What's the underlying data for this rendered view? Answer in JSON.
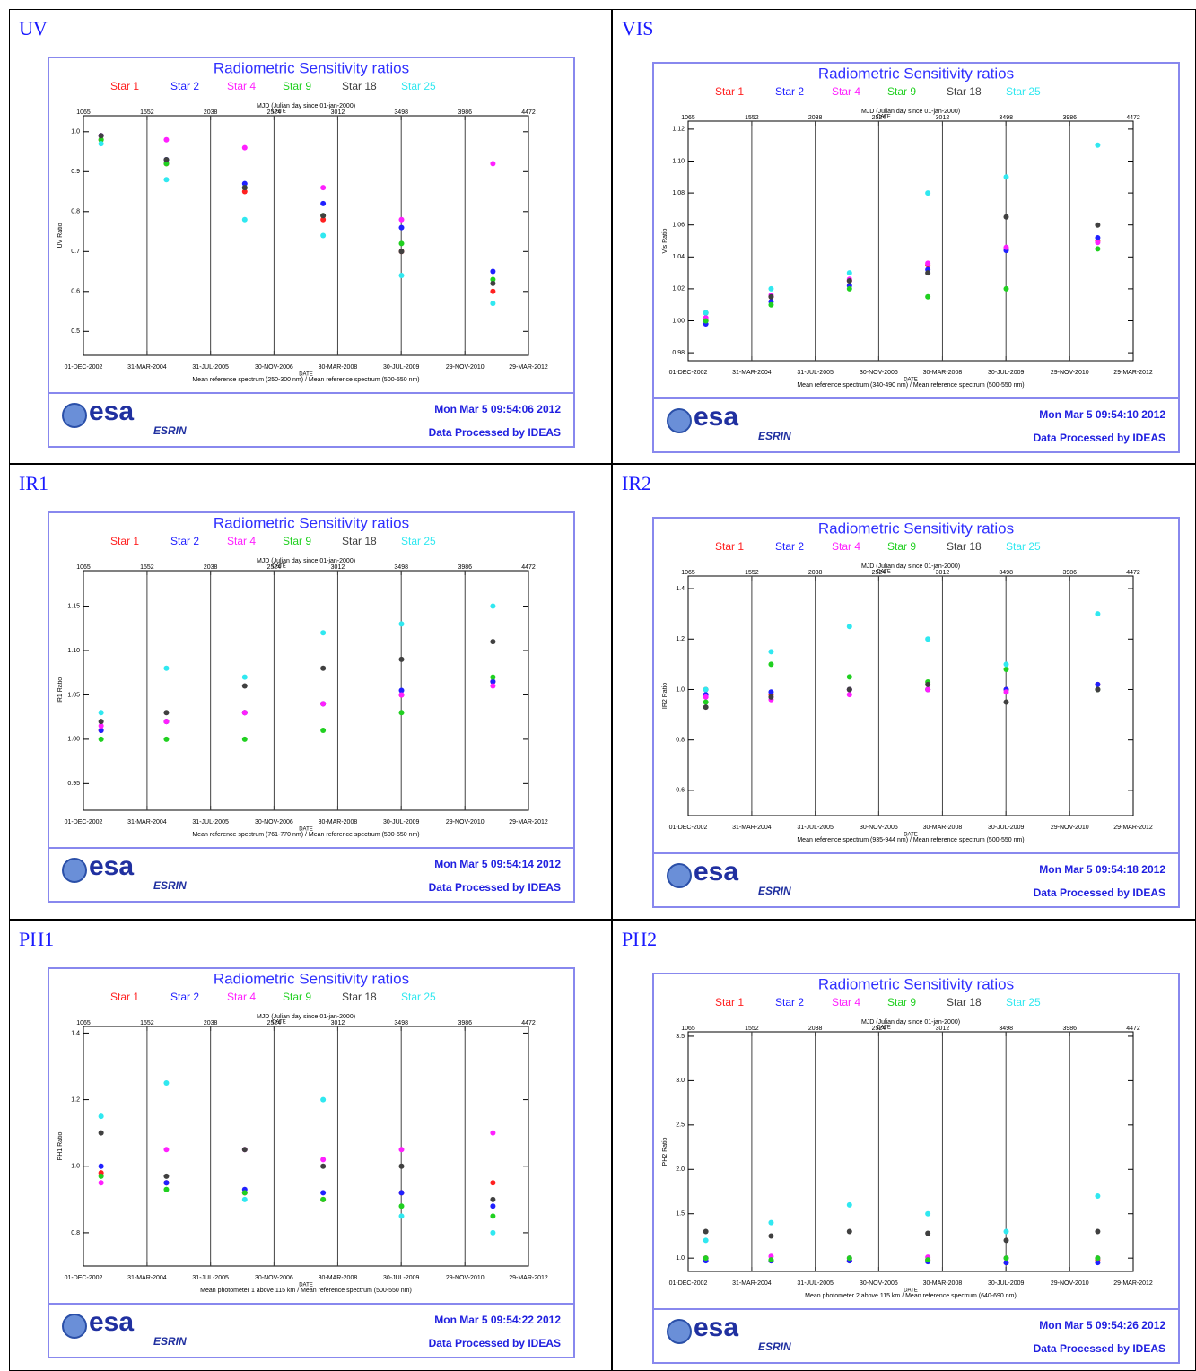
{
  "chart_data": [
    {
      "panel": "UV",
      "type": "scatter",
      "title": "Radiometric Sensitivity ratios",
      "top_axis_label": "MJD (Julian day since 01-jan-2000)",
      "date_label": "DATE",
      "xlabel": "Mean reference spectrum (250-300 nm) / Mean reference spectrum (500-550 nm)",
      "ylabel": "UV Ratio",
      "timestamp": "Mon Mar  5 09:54:06 2012",
      "credit": "Data Processed by IDEAS",
      "logo": "esa",
      "logo_sub": "ESRIN",
      "xlim": [
        1065,
        4472
      ],
      "xticks": [
        {
          "value": 1065,
          "label": "01-DEC-2002"
        },
        {
          "value": 1552,
          "label": "31-MAR-2004"
        },
        {
          "value": 2038,
          "label": "31-JUL-2005"
        },
        {
          "value": 2524,
          "label": "30-NOV-2006"
        },
        {
          "value": 3012,
          "label": "30-MAR-2008"
        },
        {
          "value": 3498,
          "label": "30-JUL-2009"
        },
        {
          "value": 3986,
          "label": "29-NOV-2010"
        },
        {
          "value": 4472,
          "label": "29-MAR-2012"
        }
      ],
      "x2ticks": [
        1065,
        1552,
        2038,
        2524,
        3012,
        3498,
        3986,
        4472
      ],
      "grid": true,
      "ylim": [
        0.44,
        1.04
      ],
      "yticks": [
        0.5,
        0.6,
        0.7,
        0.8,
        0.9,
        {
          "value": 1,
          "label": "1.0"
        }
      ],
      "x": [
        1200,
        1700,
        2300,
        2900,
        3500,
        4200
      ],
      "series": [
        {
          "name": "Star 1",
          "color": "#ff2020",
          "values": [
            0.98,
            0.92,
            0.85,
            0.78,
            0.7,
            0.6
          ]
        },
        {
          "name": "Star 2",
          "color": "#2020ff",
          "values": [
            0.99,
            0.93,
            0.87,
            0.82,
            0.76,
            0.65
          ]
        },
        {
          "name": "Star 4",
          "color": "#ff20ff",
          "values": [
            0.99,
            0.98,
            0.96,
            0.86,
            0.78,
            0.92
          ]
        },
        {
          "name": "Star 9",
          "color": "#20d020",
          "values": [
            0.98,
            0.92,
            0.86,
            0.79,
            0.72,
            0.63
          ]
        },
        {
          "name": "Star 18",
          "color": "#404040",
          "values": [
            0.99,
            0.93,
            0.86,
            0.79,
            0.7,
            0.62
          ]
        },
        {
          "name": "Star 25",
          "color": "#30e8f0",
          "values": [
            0.97,
            0.88,
            0.78,
            0.74,
            0.64,
            0.57
          ]
        }
      ]
    },
    {
      "panel": "VIS",
      "type": "scatter",
      "title": "Radiometric Sensitivity ratios",
      "top_axis_label": "MJD (Julian day since 01-jan-2000)",
      "date_label": "DATE",
      "xlabel": "Mean reference spectrum (340-490 nm) / Mean reference spectrum (500-550 nm)",
      "ylabel": "Vis Ratio",
      "timestamp": "Mon Mar  5 09:54:10 2012",
      "credit": "Data Processed by IDEAS",
      "logo": "esa",
      "logo_sub": "ESRIN",
      "xlim": [
        1065,
        4472
      ],
      "xticks": [
        {
          "value": 1065,
          "label": "01-DEC-2002"
        },
        {
          "value": 1552,
          "label": "31-MAR-2004"
        },
        {
          "value": 2038,
          "label": "31-JUL-2005"
        },
        {
          "value": 2524,
          "label": "30-NOV-2006"
        },
        {
          "value": 3012,
          "label": "30-MAR-2008"
        },
        {
          "value": 3498,
          "label": "30-JUL-2009"
        },
        {
          "value": 3986,
          "label": "29-NOV-2010"
        },
        {
          "value": 4472,
          "label": "29-MAR-2012"
        }
      ],
      "x2ticks": [
        1065,
        1552,
        2038,
        2524,
        3012,
        3498,
        3986,
        4472
      ],
      "grid": true,
      "ylim": [
        0.975,
        1.125
      ],
      "yticks": [
        0.98,
        {
          "value": 1,
          "label": "1.00"
        },
        1.02,
        1.04,
        1.06,
        1.08,
        {
          "value": 1.1,
          "label": "1.10"
        },
        1.12
      ],
      "x": [
        1200,
        1700,
        2300,
        2900,
        3500,
        4200
      ],
      "series": [
        {
          "name": "Star 1",
          "color": "#ff2020",
          "values": [
            1.0,
            1.015,
            1.025,
            1.035,
            1.045,
            1.05
          ]
        },
        {
          "name": "Star 2",
          "color": "#2020ff",
          "values": [
            0.998,
            1.012,
            1.022,
            1.032,
            1.044,
            1.052
          ]
        },
        {
          "name": "Star 4",
          "color": "#ff20ff",
          "values": [
            1.002,
            1.016,
            1.026,
            1.036,
            1.046,
            1.049
          ]
        },
        {
          "name": "Star 9",
          "color": "#20d020",
          "values": [
            1.0,
            1.01,
            1.02,
            1.015,
            1.02,
            1.045
          ]
        },
        {
          "name": "Star 18",
          "color": "#404040",
          "values": [
            1.005,
            1.015,
            1.025,
            1.03,
            1.065,
            1.06
          ]
        },
        {
          "name": "Star 25",
          "color": "#30e8f0",
          "values": [
            1.005,
            1.02,
            1.03,
            1.08,
            1.09,
            1.11
          ]
        }
      ]
    },
    {
      "panel": "IR1",
      "type": "scatter",
      "title": "Radiometric Sensitivity ratios",
      "top_axis_label": "MJD (Julian day since 01-jan-2000)",
      "date_label": "DATE",
      "xlabel": "Mean reference spectrum (761-770 nm) / Mean reference spectrum (500-550 nm)",
      "ylabel": "IR1 Ratio",
      "timestamp": "Mon Mar  5 09:54:14 2012",
      "credit": "Data Processed by IDEAS",
      "logo": "esa",
      "logo_sub": "ESRIN",
      "xlim": [
        1065,
        4472
      ],
      "xticks": [
        {
          "value": 1065,
          "label": "01-DEC-2002"
        },
        {
          "value": 1552,
          "label": "31-MAR-2004"
        },
        {
          "value": 2038,
          "label": "31-JUL-2005"
        },
        {
          "value": 2524,
          "label": "30-NOV-2006"
        },
        {
          "value": 3012,
          "label": "30-MAR-2008"
        },
        {
          "value": 3498,
          "label": "30-JUL-2009"
        },
        {
          "value": 3986,
          "label": "29-NOV-2010"
        },
        {
          "value": 4472,
          "label": "29-MAR-2012"
        }
      ],
      "x2ticks": [
        1065,
        1552,
        2038,
        2524,
        3012,
        3498,
        3986,
        4472
      ],
      "grid": true,
      "ylim": [
        0.92,
        1.19
      ],
      "yticks": [
        0.95,
        {
          "value": 1,
          "label": "1.00"
        },
        1.05,
        {
          "value": 1.1,
          "label": "1.10"
        },
        1.15
      ],
      "x": [
        1200,
        1700,
        2300,
        2900,
        3500,
        4200
      ],
      "series": [
        {
          "name": "Star 1",
          "color": "#ff2020",
          "values": [
            1.01,
            1.02,
            1.03,
            1.04,
            1.05,
            1.065
          ]
        },
        {
          "name": "Star 2",
          "color": "#2020ff",
          "values": [
            1.01,
            1.02,
            1.03,
            1.04,
            1.055,
            1.065
          ]
        },
        {
          "name": "Star 4",
          "color": "#ff20ff",
          "values": [
            1.015,
            1.02,
            1.03,
            1.04,
            1.05,
            1.06
          ]
        },
        {
          "name": "Star 9",
          "color": "#20d020",
          "values": [
            1.0,
            1.0,
            1.0,
            1.01,
            1.03,
            1.07
          ]
        },
        {
          "name": "Star 18",
          "color": "#404040",
          "values": [
            1.02,
            1.03,
            1.06,
            1.08,
            1.09,
            1.11
          ]
        },
        {
          "name": "Star 25",
          "color": "#30e8f0",
          "values": [
            1.03,
            1.08,
            1.07,
            1.12,
            1.13,
            1.15
          ]
        }
      ]
    },
    {
      "panel": "IR2",
      "type": "scatter",
      "title": "Radiometric Sensitivity ratios",
      "top_axis_label": "MJD (Julian day since 01-jan-2000)",
      "date_label": "DATE",
      "xlabel": "Mean reference spectrum (935-944 nm) / Mean reference spectrum (500-550 nm)",
      "ylabel": "IR2 Ratio",
      "timestamp": "Mon Mar  5 09:54:18 2012",
      "credit": "Data Processed by IDEAS",
      "logo": "esa",
      "logo_sub": "ESRIN",
      "xlim": [
        1065,
        4472
      ],
      "xticks": [
        {
          "value": 1065,
          "label": "01-DEC-2002"
        },
        {
          "value": 1552,
          "label": "31-MAR-2004"
        },
        {
          "value": 2038,
          "label": "31-JUL-2005"
        },
        {
          "value": 2524,
          "label": "30-NOV-2006"
        },
        {
          "value": 3012,
          "label": "30-MAR-2008"
        },
        {
          "value": 3498,
          "label": "30-JUL-2009"
        },
        {
          "value": 3986,
          "label": "29-NOV-2010"
        },
        {
          "value": 4472,
          "label": "29-MAR-2012"
        }
      ],
      "x2ticks": [
        1065,
        1552,
        2038,
        2524,
        3012,
        3498,
        3986,
        4472
      ],
      "grid": true,
      "ylim": [
        0.5,
        1.45
      ],
      "yticks": [
        0.6,
        0.8,
        {
          "value": 1,
          "label": "1.0"
        },
        1.2,
        1.4
      ],
      "x": [
        1200,
        1700,
        2300,
        2900,
        3500,
        4200
      ],
      "series": [
        {
          "name": "Star 1",
          "color": "#ff2020",
          "values": [
            1.0,
            0.98,
            1.0,
            1.0,
            1.0,
            1.02
          ]
        },
        {
          "name": "Star 2",
          "color": "#2020ff",
          "values": [
            0.98,
            0.99,
            1.0,
            1.0,
            1.0,
            1.02
          ]
        },
        {
          "name": "Star 4",
          "color": "#ff20ff",
          "values": [
            0.97,
            0.96,
            0.98,
            1.0,
            0.99,
            1.0
          ]
        },
        {
          "name": "Star 9",
          "color": "#20d020",
          "values": [
            0.95,
            1.1,
            1.05,
            1.03,
            1.08,
            1.0
          ]
        },
        {
          "name": "Star 18",
          "color": "#404040",
          "values": [
            0.93,
            0.97,
            1.0,
            1.02,
            0.95,
            1.0
          ]
        },
        {
          "name": "Star 25",
          "color": "#30e8f0",
          "values": [
            1.0,
            1.15,
            1.25,
            1.2,
            1.1,
            1.3
          ]
        }
      ]
    },
    {
      "panel": "PH1",
      "type": "scatter",
      "title": "Radiometric Sensitivity ratios",
      "top_axis_label": "MJD (Julian day since 01-jan-2000)",
      "date_label": "DATE",
      "xlabel": "Mean photometer 1 above 115 km / Mean reference spectrum (500-550 nm)",
      "ylabel": "PH1 Ratio",
      "timestamp": "Mon Mar  5 09:54:22 2012",
      "credit": "Data Processed by IDEAS",
      "logo": "esa",
      "logo_sub": "ESRIN",
      "xlim": [
        1065,
        4472
      ],
      "xticks": [
        {
          "value": 1065,
          "label": "01-DEC-2002"
        },
        {
          "value": 1552,
          "label": "31-MAR-2004"
        },
        {
          "value": 2038,
          "label": "31-JUL-2005"
        },
        {
          "value": 2524,
          "label": "30-NOV-2006"
        },
        {
          "value": 3012,
          "label": "30-MAR-2008"
        },
        {
          "value": 3498,
          "label": "30-JUL-2009"
        },
        {
          "value": 3986,
          "label": "29-NOV-2010"
        },
        {
          "value": 4472,
          "label": "29-MAR-2012"
        }
      ],
      "x2ticks": [
        1065,
        1552,
        2038,
        2524,
        3012,
        3498,
        3986,
        4472
      ],
      "grid": true,
      "ylim": [
        0.7,
        1.42
      ],
      "yticks": [
        0.8,
        {
          "value": 1,
          "label": "1.0"
        },
        1.2,
        1.4
      ],
      "x": [
        1200,
        1700,
        2300,
        2900,
        3500,
        4200
      ],
      "series": [
        {
          "name": "Star 1",
          "color": "#ff2020",
          "values": [
            0.98,
            0.95,
            0.92,
            0.9,
            0.92,
            0.95
          ]
        },
        {
          "name": "Star 2",
          "color": "#2020ff",
          "values": [
            1.0,
            0.95,
            0.93,
            0.92,
            0.92,
            0.88
          ]
        },
        {
          "name": "Star 4",
          "color": "#ff20ff",
          "values": [
            0.95,
            1.05,
            1.05,
            1.02,
            1.05,
            1.1
          ]
        },
        {
          "name": "Star 9",
          "color": "#20d020",
          "values": [
            0.97,
            0.93,
            0.92,
            0.9,
            0.88,
            0.85
          ]
        },
        {
          "name": "Star 18",
          "color": "#404040",
          "values": [
            1.1,
            0.97,
            1.05,
            1.0,
            1.0,
            0.9
          ]
        },
        {
          "name": "Star 25",
          "color": "#30e8f0",
          "values": [
            1.15,
            1.25,
            0.9,
            1.2,
            0.85,
            0.8
          ]
        }
      ]
    },
    {
      "panel": "PH2",
      "type": "scatter",
      "title": "Radiometric Sensitivity ratios",
      "top_axis_label": "MJD (Julian day since 01-jan-2000)",
      "date_label": "DATE",
      "xlabel": "Mean photometer 2 above 115 km / Mean reference spectrum (640-690 nm)",
      "ylabel": "PH2 Ratio",
      "timestamp": "Mon Mar  5 09:54:26 2012",
      "credit": "Data Processed by IDEAS",
      "logo": "esa",
      "logo_sub": "ESRIN",
      "xlim": [
        1065,
        4472
      ],
      "xticks": [
        {
          "value": 1065,
          "label": "01-DEC-2002"
        },
        {
          "value": 1552,
          "label": "31-MAR-2004"
        },
        {
          "value": 2038,
          "label": "31-JUL-2005"
        },
        {
          "value": 2524,
          "label": "30-NOV-2006"
        },
        {
          "value": 3012,
          "label": "30-MAR-2008"
        },
        {
          "value": 3498,
          "label": "30-JUL-2009"
        },
        {
          "value": 3986,
          "label": "29-NOV-2010"
        },
        {
          "value": 4472,
          "label": "29-MAR-2012"
        }
      ],
      "x2ticks": [
        1065,
        1552,
        2038,
        2524,
        3012,
        3498,
        3986,
        4472
      ],
      "grid": true,
      "ylim": [
        0.85,
        3.55
      ],
      "yticks": [
        {
          "value": 1,
          "label": "1.0"
        },
        1.5,
        {
          "value": 2,
          "label": "2.0"
        },
        2.5,
        {
          "value": 3,
          "label": "3.0"
        },
        3.5
      ],
      "x": [
        1200,
        1700,
        2300,
        2900,
        3500,
        4200
      ],
      "series": [
        {
          "name": "Star 1",
          "color": "#ff2020",
          "values": [
            1.0,
            0.97,
            0.97,
            0.98,
            0.95,
            0.98
          ]
        },
        {
          "name": "Star 2",
          "color": "#2020ff",
          "values": [
            0.97,
            0.97,
            0.97,
            0.96,
            0.95,
            0.95
          ]
        },
        {
          "name": "Star 4",
          "color": "#ff20ff",
          "values": [
            1.0,
            1.02,
            1.0,
            1.01,
            1.0,
            1.0
          ]
        },
        {
          "name": "Star 9",
          "color": "#20d020",
          "values": [
            1.0,
            0.98,
            1.0,
            0.98,
            1.0,
            1.0
          ]
        },
        {
          "name": "Star 18",
          "color": "#404040",
          "values": [
            1.3,
            1.25,
            1.3,
            1.28,
            1.2,
            1.3
          ]
        },
        {
          "name": "Star 25",
          "color": "#30e8f0",
          "values": [
            1.2,
            1.4,
            1.6,
            1.5,
            1.3,
            1.7
          ]
        }
      ]
    }
  ]
}
